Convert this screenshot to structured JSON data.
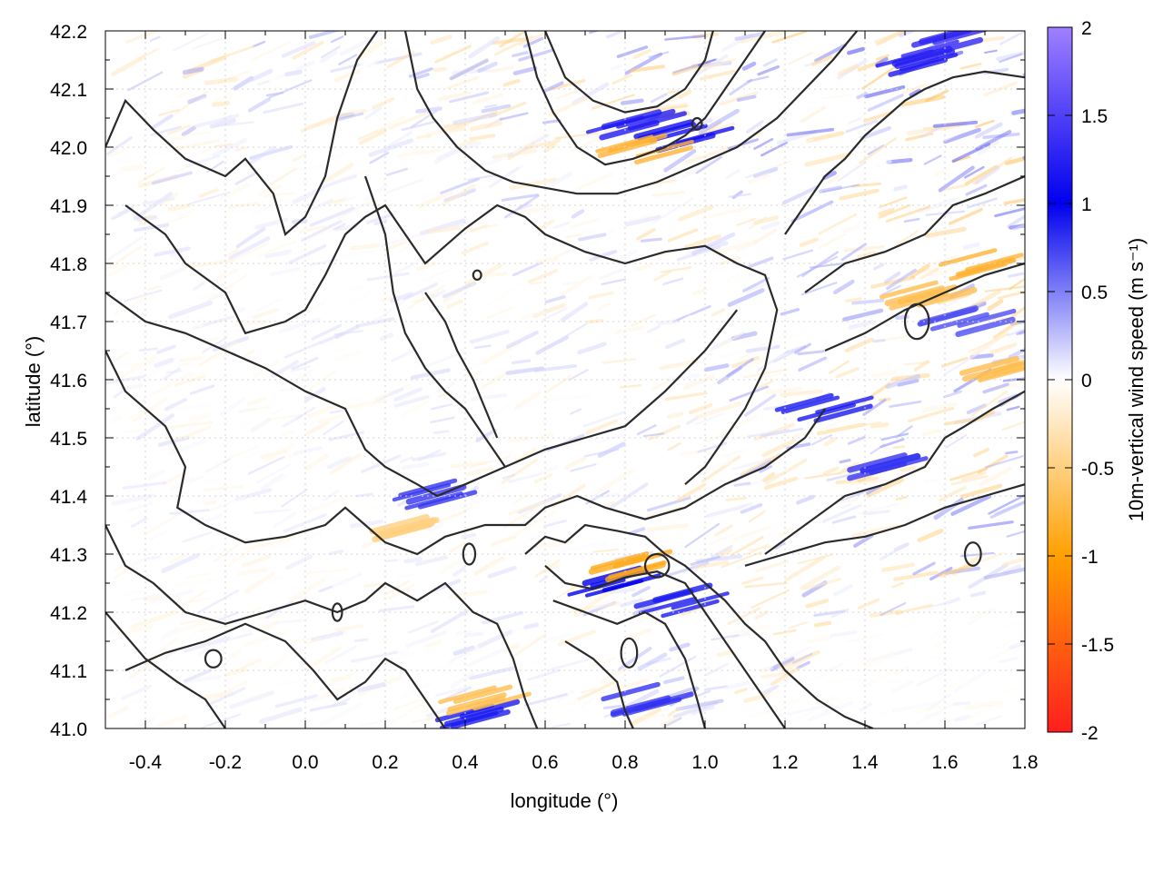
{
  "chart_data": {
    "type": "heatmap",
    "title": "",
    "xlabel": "longitude (°)",
    "ylabel": "latitude (°)",
    "xlim": [
      -0.5,
      1.8
    ],
    "ylim": [
      41.0,
      42.2
    ],
    "x_ticks": [
      "-0.4",
      "-0.2",
      "0.0",
      "0.2",
      "0.4",
      "0.6",
      "0.8",
      "1.0",
      "1.2",
      "1.4",
      "1.6",
      "1.8"
    ],
    "y_ticks": [
      "41.0",
      "41.1",
      "41.2",
      "41.3",
      "41.4",
      "41.5",
      "41.6",
      "41.7",
      "41.8",
      "41.9",
      "42.0",
      "42.1",
      "42.2"
    ],
    "grid": true,
    "colorbar": {
      "label": "10m-vertical wind speed (m s⁻¹)",
      "range": [
        -2,
        2
      ],
      "ticks": [
        "-2",
        "-1.5",
        "-1",
        "-0.5",
        "0",
        "0.5",
        "1",
        "1.5",
        "2"
      ],
      "palette": [
        {
          "value": -2.0,
          "color": "#ff1e1e"
        },
        {
          "value": -1.0,
          "color": "#ffa000"
        },
        {
          "value": 0.0,
          "color": "#ffffff"
        },
        {
          "value": 1.0,
          "color": "#0000ee"
        },
        {
          "value": 2.0,
          "color": "#a080ff"
        }
      ]
    },
    "contour_color": "#2a2a2a",
    "areas_of_strong_updraft": [
      {
        "lon": 0.83,
        "lat": 42.04,
        "w": 1.2
      },
      {
        "lon": 0.95,
        "lat": 42.02,
        "w": 1.1
      },
      {
        "lon": 1.55,
        "lat": 42.15,
        "w": 1.2
      },
      {
        "lon": 1.6,
        "lat": 42.18,
        "w": 1.3
      },
      {
        "lon": 1.3,
        "lat": 41.55,
        "w": 0.9
      },
      {
        "lon": 1.45,
        "lat": 41.45,
        "w": 0.8
      },
      {
        "lon": 0.78,
        "lat": 41.25,
        "w": 1.0
      },
      {
        "lon": 0.95,
        "lat": 41.22,
        "w": 0.9
      },
      {
        "lon": 0.3,
        "lat": 41.4,
        "w": 0.8
      },
      {
        "lon": 0.45,
        "lat": 41.02,
        "w": 0.9
      },
      {
        "lon": 0.85,
        "lat": 41.05,
        "w": 0.8
      },
      {
        "lon": 1.65,
        "lat": 41.7,
        "w": 0.7
      }
    ],
    "areas_of_downdraft": [
      {
        "lon": 0.85,
        "lat": 42.0,
        "w": -0.8
      },
      {
        "lon": 1.55,
        "lat": 41.75,
        "w": -0.7
      },
      {
        "lon": 1.7,
        "lat": 41.8,
        "w": -0.8
      },
      {
        "lon": 0.8,
        "lat": 41.28,
        "w": -0.9
      },
      {
        "lon": 0.45,
        "lat": 41.05,
        "w": -0.7
      },
      {
        "lon": 0.28,
        "lat": 41.35,
        "w": -0.5
      },
      {
        "lon": 1.75,
        "lat": 41.62,
        "w": -0.7
      }
    ]
  }
}
